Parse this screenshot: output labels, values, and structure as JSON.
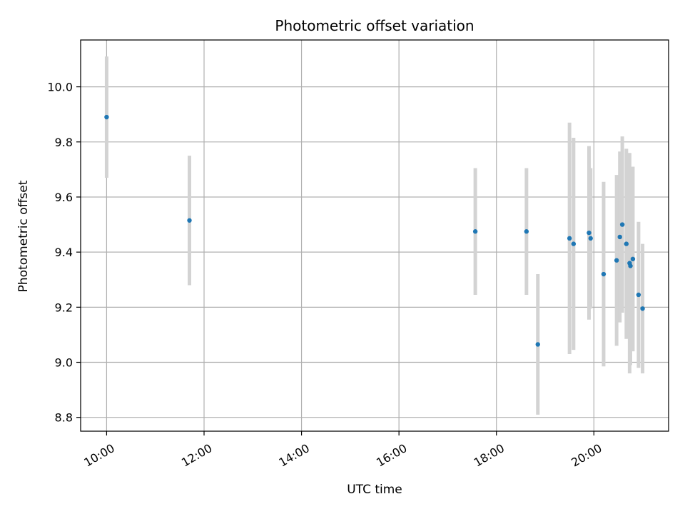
{
  "chart_data": {
    "type": "scatter",
    "title": "Photometric offset variation",
    "xlabel": "UTC time",
    "ylabel": "Photometric offset",
    "x_tick_labels": [
      "10:00",
      "12:00",
      "14:00",
      "16:00",
      "18:00",
      "20:00"
    ],
    "x_ticks_hours": [
      10,
      12,
      14,
      16,
      18,
      20
    ],
    "y_tick_labels": [
      "8.8",
      "9.0",
      "9.2",
      "9.4",
      "9.6",
      "9.8",
      "10.0"
    ],
    "y_ticks": [
      8.8,
      9.0,
      9.2,
      9.4,
      9.6,
      9.8,
      10.0
    ],
    "xlim": [
      "09:28",
      "21:32"
    ],
    "ylim": [
      8.75,
      10.17
    ],
    "grid": true,
    "point_color": "#1f77b4",
    "errorbar_color": "#d3d3d3",
    "points": [
      {
        "x": "10:00",
        "y": 9.89,
        "err": 0.22
      },
      {
        "x": "11:42",
        "y": 9.515,
        "err": 0.235
      },
      {
        "x": "17:34",
        "y": 9.475,
        "err": 0.23
      },
      {
        "x": "18:37",
        "y": 9.475,
        "err": 0.23
      },
      {
        "x": "18:51",
        "y": 9.065,
        "err": 0.255
      },
      {
        "x": "19:30",
        "y": 9.45,
        "err": 0.42
      },
      {
        "x": "19:35",
        "y": 9.43,
        "err": 0.385
      },
      {
        "x": "19:54",
        "y": 9.47,
        "err": 0.315
      },
      {
        "x": "19:56",
        "y": 9.45,
        "err": 0.255
      },
      {
        "x": "20:12",
        "y": 9.32,
        "err": 0.335
      },
      {
        "x": "20:28",
        "y": 9.37,
        "err": 0.31
      },
      {
        "x": "20:32",
        "y": 9.455,
        "err": 0.31
      },
      {
        "x": "20:35",
        "y": 9.5,
        "err": 0.32
      },
      {
        "x": "20:40",
        "y": 9.43,
        "err": 0.345
      },
      {
        "x": "20:44",
        "y": 9.36,
        "err": 0.4
      },
      {
        "x": "20:45",
        "y": 9.35,
        "err": 0.36
      },
      {
        "x": "20:48",
        "y": 9.375,
        "err": 0.335
      },
      {
        "x": "20:55",
        "y": 9.245,
        "err": 0.265
      },
      {
        "x": "21:00",
        "y": 9.195,
        "err": 0.235
      }
    ]
  }
}
